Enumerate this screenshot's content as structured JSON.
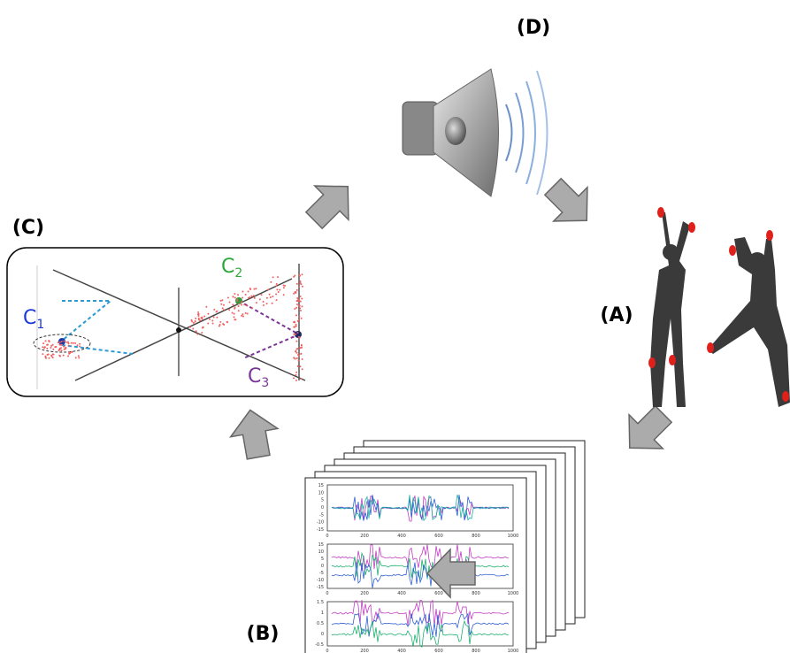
{
  "labels": {
    "a": "(A)",
    "b": "(B)",
    "c": "(C)",
    "d": "(D)"
  },
  "clusters": [
    {
      "letter": "C",
      "index": "1"
    },
    {
      "letter": "C",
      "index": "2"
    },
    {
      "letter": "C",
      "index": "3"
    }
  ],
  "plot": {
    "yticks_top": [
      "15",
      "10",
      "5",
      "0",
      "-5",
      "-10",
      "-15"
    ],
    "yticks_bottom": [
      "1.5",
      "1",
      "0.5",
      "0",
      "-0.5"
    ],
    "xticks": [
      "0",
      "200",
      "400",
      "600",
      "800",
      "1000"
    ]
  }
}
